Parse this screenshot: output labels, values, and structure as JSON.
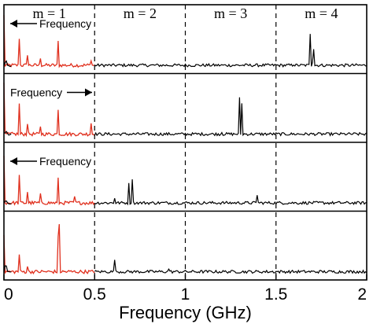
{
  "chart_data": {
    "type": "line",
    "xlabel": "Frequency (GHz)",
    "xlim": [
      0,
      2
    ],
    "x_ticks": [
      "0",
      "0.5",
      "1",
      "1.5",
      "2"
    ],
    "x_tick_values": [
      0,
      0.5,
      1,
      1.5,
      2
    ],
    "band_dividers": [
      0.5,
      1.0,
      1.5
    ],
    "band_labels": [
      "m = 1",
      "m = 2",
      "m = 3",
      "m = 4"
    ],
    "series_colors": {
      "folded": "#e0301e",
      "trace": "#000000"
    },
    "panels": [
      {
        "arrow_label": "Frequency",
        "arrow_direction": "left",
        "folded_peaks": [
          [
            0.0,
            0.85
          ],
          [
            0.085,
            0.55
          ],
          [
            0.3,
            0.6
          ],
          [
            0.13,
            0.2
          ],
          [
            0.2,
            0.2
          ],
          [
            0.48,
            0.12
          ]
        ],
        "trace_peaks": [
          [
            0.01,
            0.35
          ],
          [
            1.6,
            0.06
          ],
          [
            1.69,
            0.95
          ],
          [
            1.705,
            0.95
          ]
        ]
      },
      {
        "arrow_label": "Frequency",
        "arrow_direction": "right",
        "folded_peaks": [
          [
            0.0,
            0.85
          ],
          [
            0.085,
            0.6
          ],
          [
            0.3,
            0.65
          ],
          [
            0.13,
            0.2
          ],
          [
            0.2,
            0.2
          ],
          [
            0.48,
            0.22
          ]
        ],
        "trace_peaks": [
          [
            0.01,
            0.2
          ],
          [
            1.3,
            0.9
          ],
          [
            1.31,
            0.9
          ],
          [
            1.2,
            0.05
          ]
        ]
      },
      {
        "arrow_label": "Frequency",
        "arrow_direction": "left",
        "folded_peaks": [
          [
            0.0,
            0.8
          ],
          [
            0.085,
            0.55
          ],
          [
            0.3,
            0.6
          ],
          [
            0.13,
            0.2
          ],
          [
            0.2,
            0.2
          ],
          [
            0.39,
            0.12
          ]
        ],
        "trace_peaks": [
          [
            0.01,
            0.2
          ],
          [
            0.61,
            0.1
          ],
          [
            0.69,
            0.55
          ],
          [
            0.71,
            0.95
          ],
          [
            1.395,
            0.2
          ]
        ]
      },
      {
        "arrow_label": "",
        "arrow_direction": "",
        "folded_peaks": [
          [
            0.0,
            0.6
          ],
          [
            0.085,
            0.35
          ],
          [
            0.3,
            0.85
          ],
          [
            0.305,
            0.85
          ],
          [
            0.13,
            0.1
          ]
        ],
        "trace_peaks": [
          [
            0.01,
            0.5
          ],
          [
            0.61,
            0.25
          ],
          [
            0.91,
            0.07
          ]
        ]
      }
    ]
  }
}
